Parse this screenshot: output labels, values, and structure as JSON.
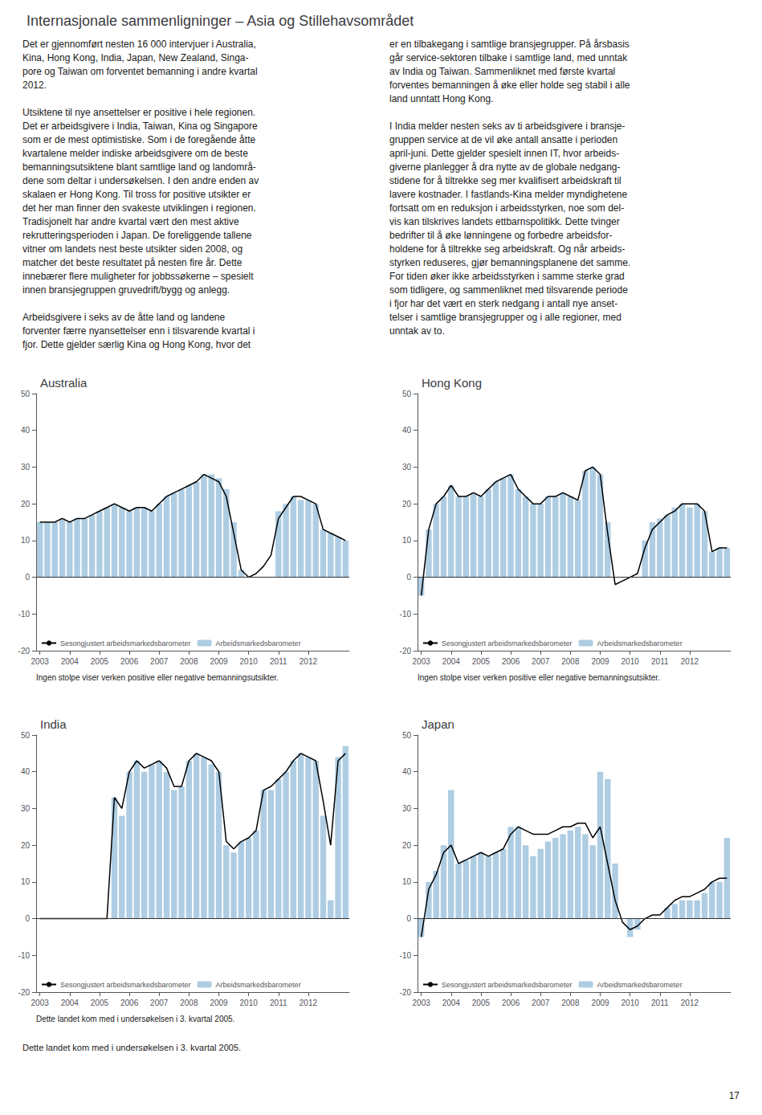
{
  "title": "Internasjonale sammenligninger – Asia og Stillehavsområdet",
  "annotations": [
    "Det er gjennomført nesten 16 000 intervjuer i Australia,\nKina, Hong Kong, India, Japan, New Zealand, Singa-\npore og Taiwan om forventet bemanning i andre kvartal\n2012.\n\nUtsiktene til nye ansettelser er positive i hele regionen.\nDet er arbeidsgivere i India, Taiwan, Kina og Singapore\nsom er de mest optimistiske. Som i de foregående åtte\nkvartalene melder indiske arbeidsgivere om de beste\nbemanningsutsiktene blant samtlige land og landområ-\ndene som deltar i undersøkelsen. I den andre enden av\nskalaen er Hong Kong. Til tross for positive utsikter er\ndet her man finner den svakeste utviklingen i regionen.\nTradisjonelt har andre kvartal vært den mest aktive\nrekrutteringsperioden i Japan. De foreliggende tallene\nvitner om landets nest beste utsikter siden 2008, og\nmatcher det beste resultatet på nesten fire år. Dette\ninnebærer flere muligheter for jobbssøkerne – spesielt\ninnen bransjegruppen gruvedrift/bygg og anlegg.\n\nArbeidsgivere i seks av de åtte land og landene\nforventer færre nyansettelser enn i tilsvarende kvartal i\nfjor. Dette gjelder særlig Kina og Hong Kong, hvor det",
    "er en tilbakegang i samtlige bransjegrupper. På årsbasis\ngår service-sektoren tilbake i samtlige land, med unntak\nav India og Taiwan. Sammenliknet med første kvartal\nforventes bemanningen å øke eller holde seg stabil i alle\nland unntatt Hong Kong.\n\nI India melder nesten seks av ti arbeidsgivere i bransje-\ngruppen service at de vil øke antall ansatte i perioden\napril-juni. Dette gjelder spesielt innen IT, hvor arbeids-\ngiverne planlegger å dra nytte av de globale nedgang-\nstidene for å tiltrekke seg mer kvalifisert arbeidskraft til\nlavere kostnader. I fastlands-Kina melder myndighetene\nfortsatt om en reduksjon i arbeidsstyrken, noe som del-\nvis kan tilskrives landets ettbarnspolitikk. Dette tvinger\nbedrifter til å øke lønningene og forbedre arbeidsfor-\nholdene for å tiltrekke seg arbeidskraft. Og når arbeids-\nstyrken reduseres, gjør bemanningsplanene det samme.\nFor tiden øker ikke arbeidsstyrken i samme sterke grad\nsom tidligere, og sammenliknet med tilsvarende periode\ni fjor har det vært en sterk nedgang i antall nye anset-\ntelser i samtlige bransjegrupper og i alle regioner, med\nunntak av to.",
    "Dette landet kom med i undersøkelsen i 3. kvartal 2005.",
    "17"
  ],
  "chart_data": [
    {
      "type": "bar",
      "title": "Australia",
      "categories": [
        "2003",
        null,
        null,
        null,
        "2004",
        null,
        null,
        null,
        "2005",
        null,
        null,
        null,
        "2006",
        null,
        null,
        null,
        "2007",
        null,
        null,
        null,
        "2008",
        null,
        null,
        null,
        "2009",
        null,
        null,
        null,
        "2010",
        null,
        null,
        null,
        "2011",
        null,
        null,
        null,
        "2012",
        null,
        null,
        null,
        null,
        null
      ],
      "series": [
        {
          "name": "Sesongjustert arbeidsmarkedsbarometer",
          "type": "line",
          "color": "#000000",
          "values": [
            15,
            15,
            15,
            16,
            15,
            16,
            16,
            17,
            18,
            19,
            20,
            19,
            18,
            19,
            19,
            18,
            20,
            22,
            23,
            24,
            25,
            26,
            28,
            27,
            26,
            22,
            12,
            2,
            0,
            1,
            3,
            6,
            16,
            19,
            22,
            22,
            21,
            20,
            13,
            12,
            11,
            10
          ]
        },
        {
          "name": "Arbeidsmarkedsbarometer",
          "type": "bar",
          "color": "#aecde3",
          "values": [
            15,
            15,
            15,
            16,
            15,
            16,
            16,
            17,
            18,
            19,
            20,
            19,
            18,
            19,
            19,
            18,
            20,
            22,
            23,
            24,
            25,
            26,
            28,
            28,
            27,
            24,
            15,
            2,
            0,
            0,
            0,
            0,
            18,
            20,
            22,
            21,
            21,
            20,
            13,
            12,
            11,
            10
          ]
        }
      ],
      "ylim": [
        -20,
        50
      ],
      "yticks": [
        -20,
        -10,
        0,
        10,
        20,
        30,
        40,
        50
      ],
      "grid": false,
      "legend": "lower left",
      "annotations": [
        "Ingen stolpe viser verken positive eller negative bemanningsutsikter."
      ]
    },
    {
      "type": "bar",
      "title": "Hong Kong",
      "categories": [
        "2003",
        null,
        null,
        null,
        "2004",
        null,
        null,
        null,
        "2005",
        null,
        null,
        null,
        "2006",
        null,
        null,
        null,
        "2007",
        null,
        null,
        null,
        "2008",
        null,
        null,
        null,
        "2009",
        null,
        null,
        null,
        "2010",
        null,
        null,
        null,
        "2011",
        null,
        null,
        null,
        "2012",
        null,
        null,
        null,
        null,
        null
      ],
      "series": [
        {
          "name": "Sesongjustert arbeidsmarkedsbarometer",
          "type": "line",
          "color": "#000000",
          "values": [
            -5,
            13,
            20,
            22,
            25,
            22,
            22,
            23,
            22,
            24,
            26,
            27,
            28,
            24,
            22,
            20,
            20,
            22,
            22,
            23,
            22,
            21,
            29,
            30,
            28,
            12,
            -2,
            -1,
            0,
            1,
            8,
            13,
            15,
            17,
            18,
            20,
            20,
            20,
            18,
            7,
            8,
            8
          ]
        },
        {
          "name": "Arbeidsmarkedsbarometer",
          "type": "bar",
          "color": "#aecde3",
          "values": [
            -5,
            13,
            20,
            22,
            25,
            22,
            22,
            23,
            22,
            24,
            26,
            27,
            28,
            24,
            22,
            20,
            20,
            22,
            22,
            23,
            22,
            21,
            29,
            30,
            28,
            15,
            0,
            0,
            0,
            0,
            10,
            15,
            16,
            17,
            19,
            20,
            19,
            20,
            18,
            7,
            8,
            8
          ]
        }
      ],
      "ylim": [
        -20,
        50
      ],
      "yticks": [
        -20,
        -10,
        0,
        10,
        20,
        30,
        40,
        50
      ],
      "grid": false,
      "legend": "lower left",
      "annotations": [
        "Ingen stolpe viser verken positive eller negative bemanningsutsikter."
      ]
    },
    {
      "type": "bar",
      "title": "India",
      "categories": [
        "2003",
        null,
        null,
        null,
        "2004",
        null,
        null,
        null,
        "2005",
        null,
        null,
        null,
        "2006",
        null,
        null,
        null,
        "2007",
        null,
        null,
        null,
        "2008",
        null,
        null,
        null,
        "2009",
        null,
        null,
        null,
        "2010",
        null,
        null,
        null,
        "2011",
        null,
        null,
        null,
        "2012",
        null,
        null,
        null,
        null,
        null
      ],
      "series": [
        {
          "name": "Sesongjustert arbeidsmarkedsbarometer",
          "type": "line",
          "color": "#000000",
          "values": [
            0,
            0,
            0,
            0,
            0,
            0,
            0,
            0,
            0,
            0,
            33,
            30,
            40,
            43,
            41,
            42,
            43,
            41,
            36,
            36,
            43,
            45,
            44,
            43,
            40,
            21,
            19,
            21,
            22,
            24,
            35,
            36,
            38,
            40,
            43,
            45,
            44,
            43,
            32,
            20,
            43,
            45
          ]
        },
        {
          "name": "Arbeidsmarkedsbarometer",
          "type": "bar",
          "color": "#aecde3",
          "values": [
            0,
            0,
            0,
            0,
            0,
            0,
            0,
            0,
            0,
            0,
            33,
            28,
            40,
            43,
            40,
            42,
            43,
            40,
            35,
            36,
            43,
            45,
            44,
            42,
            40,
            20,
            18,
            21,
            22,
            24,
            35,
            35,
            38,
            40,
            43,
            45,
            44,
            43,
            28,
            5,
            44,
            47
          ]
        }
      ],
      "ylim": [
        -20,
        50
      ],
      "yticks": [
        -20,
        -10,
        0,
        10,
        20,
        30,
        40,
        50
      ],
      "grid": false,
      "legend": "lower left",
      "annotations": [
        "Dette landet kom med i undersøkelsen i 3. kvartal 2005."
      ]
    },
    {
      "type": "bar",
      "title": "Japan",
      "categories": [
        "2003",
        null,
        null,
        null,
        "2004",
        null,
        null,
        null,
        "2005",
        null,
        null,
        null,
        "2006",
        null,
        null,
        null,
        "2007",
        null,
        null,
        null,
        "2008",
        null,
        null,
        null,
        "2009",
        null,
        null,
        null,
        "2010",
        null,
        null,
        null,
        "2011",
        null,
        null,
        null,
        "2012",
        null,
        null,
        null,
        null,
        null
      ],
      "series": [
        {
          "name": "Sesongjustert arbeidsmarkedsbarometer",
          "type": "line",
          "color": "#000000",
          "values": [
            -5,
            8,
            12,
            18,
            20,
            15,
            16,
            17,
            18,
            17,
            18,
            19,
            23,
            25,
            24,
            23,
            23,
            23,
            24,
            25,
            25,
            26,
            26,
            22,
            25,
            15,
            5,
            -1,
            -3,
            -2,
            0,
            1,
            1,
            3,
            5,
            6,
            6,
            7,
            8,
            10,
            11,
            11
          ]
        },
        {
          "name": "Arbeidsmarkedsbarometer",
          "type": "bar",
          "color": "#aecde3",
          "values": [
            -5,
            10,
            13,
            20,
            35,
            15,
            16,
            17,
            18,
            17,
            18,
            19,
            25,
            25,
            20,
            17,
            19,
            21,
            22,
            23,
            24,
            25,
            23,
            20,
            40,
            38,
            15,
            0,
            -5,
            -3,
            0,
            0,
            0,
            3,
            4,
            5,
            5,
            5,
            7,
            10,
            10,
            22
          ]
        }
      ],
      "ylim": [
        -20,
        50
      ],
      "yticks": [
        -20,
        -10,
        0,
        10,
        20,
        30,
        40,
        50
      ],
      "grid": false,
      "legend": "lower left"
    }
  ]
}
